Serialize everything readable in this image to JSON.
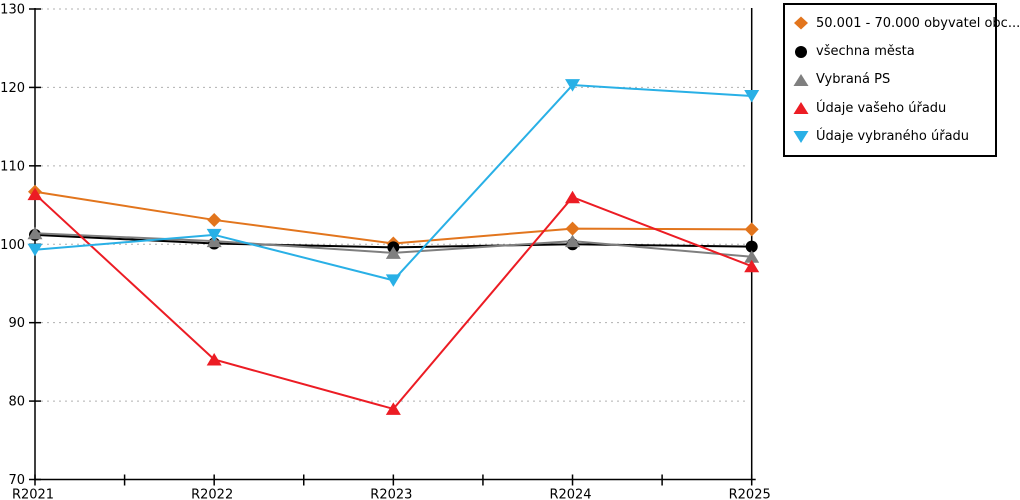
{
  "chart_data": {
    "type": "line",
    "title": "",
    "xlabel": "",
    "ylabel": "",
    "categories": [
      "R2021",
      "R2022",
      "R2023",
      "R2024",
      "R2025"
    ],
    "yticks": [
      70,
      80,
      90,
      100,
      110,
      120,
      130
    ],
    "ylim": [
      70,
      130
    ],
    "grid": true,
    "grid_style": "dashed",
    "legend_position": "top-right",
    "series": [
      {
        "name": "50.001 - 70.000 obyvatel obc...",
        "marker": "diamond",
        "color": "#E2751D",
        "values": [
          106.7,
          103.1,
          100.1,
          102.0,
          101.9
        ]
      },
      {
        "name": "všechna města",
        "marker": "circle",
        "color": "#000000",
        "values": [
          101.2,
          100.1,
          99.6,
          100.0,
          99.7
        ]
      },
      {
        "name": "Vybraná PS",
        "marker": "triangle-up",
        "color": "#7F7F7F",
        "values": [
          101.4,
          100.4,
          98.9,
          100.4,
          98.4
        ]
      },
      {
        "name": "Údaje vašeho úřadu",
        "marker": "triangle-up",
        "color": "#EC1C24",
        "values": [
          106.4,
          85.3,
          79.0,
          106.0,
          97.2
        ]
      },
      {
        "name": "Údaje vybraného úřadu",
        "marker": "triangle-down",
        "color": "#29B0E6",
        "values": [
          99.3,
          101.2,
          95.4,
          120.3,
          118.9
        ]
      }
    ]
  },
  "colors": {
    "background": "#ffffff",
    "axis": "#000000",
    "grid": "#b0b0b0",
    "legend_border": "#000000",
    "text": "#000000"
  }
}
